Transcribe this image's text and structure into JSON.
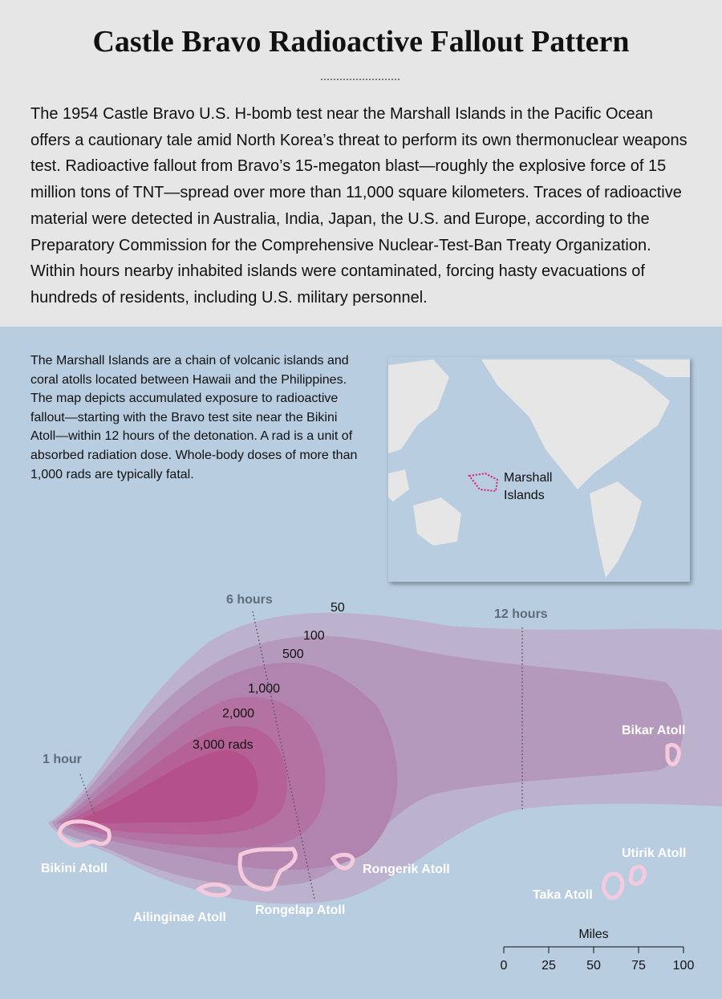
{
  "title": "Castle Bravo Radioactive Fallout Pattern",
  "intro": "The 1954 Castle Bravo U.S. H-bomb test near the Marshall Islands in the Pacific Ocean offers a cautionary tale amid North Korea’s threat to perform its own thermonuclear weapons test. Radioactive fallout from Bravo’s 15-megaton blast—roughly the explosive force of 15 million tons of TNT—spread over more than 11,000 square kilometers. Traces of radioactive material were detected in Australia, India, Japan, the U.S. and Europe, according to the Preparatory Commission for the Comprehensive Nuclear-Test-Ban Treaty Organization. Within hours nearby inhabited islands were contaminat­ed, forcing hasty evacuations of hundreds of residents, including U.S. military personnel.",
  "description": "The Marshall Islands are a chain of volcanic islands and coral atolls located between Hawaii and the Philippines. The map depicts accumulated exposure to radioactive fallout—starting with the Bravo test site near the Bikini Atoll—within 12 hours of the detonation. A rad is a unit of absorbed radiation dose. Whole-body doses of more than 1,000 rads are typically fatal.",
  "inset": {
    "label": "Marshall Islands"
  },
  "contours": [
    "50",
    "100",
    "500",
    "1,000",
    "2,000",
    "3,000 rads"
  ],
  "time_markers": [
    "1 hour",
    "6 hours",
    "12 hours"
  ],
  "atolls": [
    "Bikini Atoll",
    "Ailinginae Atoll",
    "Rongelap Atoll",
    "Rongerik Atoll",
    "Bikar Atoll",
    "Taka Atoll",
    "Utirik Atoll"
  ],
  "scale": {
    "title": "Miles",
    "ticks": [
      0,
      25,
      50,
      75,
      100
    ]
  }
}
